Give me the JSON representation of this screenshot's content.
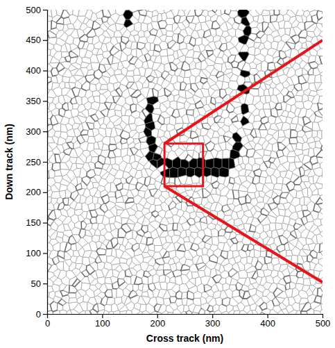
{
  "chart_data": {
    "type": "scatter",
    "marker": "grain",
    "color": "#000000",
    "xlabel": "Cross track (nm)",
    "ylabel": "Down track (nm)",
    "xlim": [
      0,
      500
    ],
    "ylim": [
      0,
      500
    ],
    "xticks": [
      0,
      100,
      200,
      300,
      400,
      500
    ],
    "yticks": [
      0,
      50,
      100,
      150,
      200,
      250,
      300,
      350,
      400,
      450,
      500
    ],
    "x": [
      148,
      148,
      355,
      360,
      362,
      356,
      358,
      360,
      357,
      360,
      358,
      345,
      345,
      192,
      188,
      185,
      190,
      183,
      188,
      193,
      188,
      198,
      195,
      205,
      220,
      235,
      250,
      265,
      280,
      295,
      310,
      325,
      335,
      215,
      230,
      245,
      260,
      275,
      290,
      305,
      320,
      340
    ],
    "values": [
      478,
      490,
      495,
      480,
      466,
      450,
      425,
      395,
      370,
      335,
      318,
      290,
      275,
      350,
      338,
      322,
      308,
      298,
      285,
      272,
      260,
      258,
      248,
      248,
      248,
      248,
      248,
      248,
      248,
      248,
      248,
      248,
      248,
      232,
      232,
      232,
      232,
      232,
      232,
      232,
      232,
      262
    ],
    "annotations": [
      {
        "type": "zoom",
        "color": "#e8141b",
        "xlim": [
          213,
          283
        ],
        "ylim": [
          210,
          280
        ],
        "to": [
          [
            500,
            450
          ],
          [
            500,
            52
          ]
        ]
      }
    ]
  }
}
